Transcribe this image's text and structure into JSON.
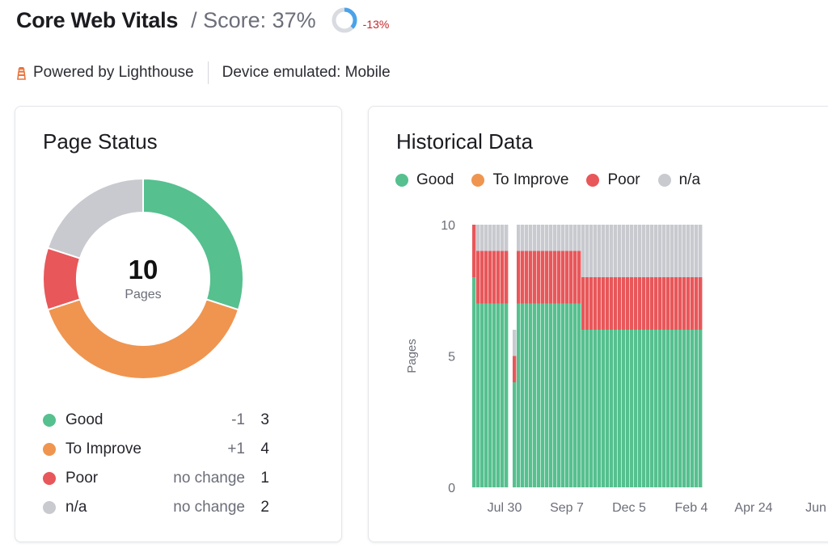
{
  "header": {
    "title": "Core Web Vitals",
    "score_text": "/ Score: 37%",
    "score_percent": 37,
    "delta": "-13%"
  },
  "subbar": {
    "powered": "Powered by Lighthouse",
    "device": "Device emulated: Mobile",
    "icon": "lighthouse-icon"
  },
  "colors": {
    "good": "#56c08f",
    "improve": "#ef9550",
    "poor": "#e8575a",
    "na": "#c8cacf",
    "score_ring": "#4aa3ea"
  },
  "page_status": {
    "title": "Page Status",
    "total": "10",
    "total_label": "Pages",
    "items": [
      {
        "key": "good",
        "name": "Good",
        "change": "-1",
        "count": "3"
      },
      {
        "key": "improve",
        "name": "To Improve",
        "change": "+1",
        "count": "4"
      },
      {
        "key": "poor",
        "name": "Poor",
        "change": "no change",
        "count": "1"
      },
      {
        "key": "na",
        "name": "n/a",
        "change": "no change",
        "count": "2"
      }
    ]
  },
  "historical": {
    "title": "Historical Data",
    "legend": [
      {
        "key": "good",
        "name": "Good"
      },
      {
        "key": "improve",
        "name": "To Improve"
      },
      {
        "key": "poor",
        "name": "Poor"
      },
      {
        "key": "na",
        "name": "n/a"
      }
    ]
  },
  "chart_data": [
    {
      "type": "pie",
      "title": "Page Status",
      "categories": [
        "Good",
        "To Improve",
        "Poor",
        "n/a"
      ],
      "values": [
        3,
        4,
        1,
        2
      ]
    },
    {
      "type": "bar",
      "stacked": true,
      "title": "Historical Data",
      "ylabel": "Pages",
      "ylim": [
        0,
        10
      ],
      "yticks": [
        0,
        5,
        10
      ],
      "xticks": [
        "Jul 30",
        "Sep 7",
        "Dec 5",
        "Feb 4",
        "Apr 24",
        "Jun"
      ],
      "series": [
        {
          "name": "Good",
          "segments": [
            {
              "bars": 1,
              "value": 8
            },
            {
              "bars": 8,
              "value": 7
            },
            {
              "bars": 1,
              "value": 0
            },
            {
              "bars": 1,
              "value": 4
            },
            {
              "bars": 16,
              "value": 7
            },
            {
              "bars": 30,
              "value": 6
            }
          ]
        },
        {
          "name": "To Improve",
          "segments": [
            {
              "bars": 57,
              "value": 0
            }
          ]
        },
        {
          "name": "Poor",
          "segments": [
            {
              "bars": 1,
              "value": 2
            },
            {
              "bars": 8,
              "value": 2
            },
            {
              "bars": 1,
              "value": 0
            },
            {
              "bars": 1,
              "value": 1
            },
            {
              "bars": 16,
              "value": 2
            },
            {
              "bars": 30,
              "value": 2
            }
          ]
        },
        {
          "name": "n/a",
          "segments": [
            {
              "bars": 1,
              "value": 0
            },
            {
              "bars": 8,
              "value": 1
            },
            {
              "bars": 1,
              "value": 0
            },
            {
              "bars": 1,
              "value": 1
            },
            {
              "bars": 16,
              "value": 1
            },
            {
              "bars": 30,
              "value": 2
            }
          ]
        }
      ]
    }
  ]
}
